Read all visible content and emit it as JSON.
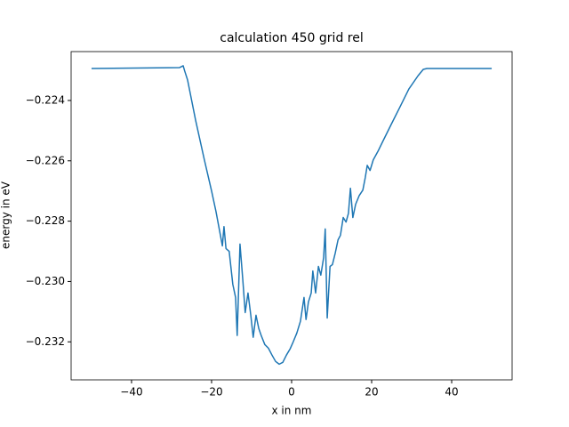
{
  "chart_data": {
    "type": "line",
    "title": "calculation 450 grid rel",
    "x_label": "x in nm",
    "y_label": "energy in eV",
    "x": [
      -50,
      -28,
      -27.1,
      -26.7,
      -26,
      -24,
      -21.8,
      -20,
      -18.9,
      -18,
      -17.3,
      -16.9,
      -16.4,
      -15.6,
      -14.7,
      -14,
      -13.6,
      -12.9,
      -12.2,
      -11.6,
      -10.9,
      -10.2,
      -9.6,
      -8.9,
      -8.2,
      -7.6,
      -6.7,
      -5.8,
      -4.9,
      -4,
      -3.1,
      -2.2,
      -1.3,
      -0.4,
      0.4,
      1.3,
      2.2,
      3.1,
      3.6,
      4.2,
      4.9,
      5.3,
      6,
      6.7,
      7.3,
      8,
      8.4,
      8.9,
      9.6,
      10.2,
      10.9,
      11.6,
      12.2,
      12.9,
      13.6,
      14.2,
      14.7,
      15.3,
      16,
      16.9,
      17.8,
      18.4,
      18.9,
      19.6,
      20.4,
      21.6,
      22.7,
      24.9,
      27.1,
      29.3,
      31.6,
      32.9,
      33.8,
      50
    ],
    "series": [
      {
        "color": "#1f77b4",
        "values": [
          -0.22294,
          -0.22291,
          -0.22285,
          -0.22303,
          -0.22332,
          -0.22465,
          -0.22597,
          -0.227,
          -0.22768,
          -0.22832,
          -0.22882,
          -0.22818,
          -0.22891,
          -0.229,
          -0.23009,
          -0.23053,
          -0.23179,
          -0.22876,
          -0.22994,
          -0.23103,
          -0.23038,
          -0.23112,
          -0.23185,
          -0.23112,
          -0.23156,
          -0.23179,
          -0.23209,
          -0.23221,
          -0.23244,
          -0.23265,
          -0.23274,
          -0.23268,
          -0.23244,
          -0.23224,
          -0.232,
          -0.23171,
          -0.23132,
          -0.23053,
          -0.23126,
          -0.23068,
          -0.23038,
          -0.22965,
          -0.23038,
          -0.2295,
          -0.22979,
          -0.22921,
          -0.22826,
          -0.23121,
          -0.2295,
          -0.22944,
          -0.22906,
          -0.22862,
          -0.22847,
          -0.22788,
          -0.22803,
          -0.22774,
          -0.22691,
          -0.22788,
          -0.22744,
          -0.22715,
          -0.22697,
          -0.22656,
          -0.22615,
          -0.22632,
          -0.22597,
          -0.22568,
          -0.22538,
          -0.22479,
          -0.22421,
          -0.22362,
          -0.22318,
          -0.22297,
          -0.22294,
          -0.22294
        ]
      }
    ],
    "xlim": [
      -55.1,
      55.1
    ],
    "xticks": [
      {
        "value": -40,
        "label": "−40"
      },
      {
        "value": -20,
        "label": "−20"
      },
      0,
      20,
      40
    ],
    "ylim": [
      -0.23326,
      -0.22238
    ],
    "yticks": [
      {
        "value": -0.224,
        "label": "−0.224"
      },
      {
        "value": -0.226,
        "label": "−0.226"
      },
      {
        "value": -0.228,
        "label": "−0.228"
      },
      {
        "value": -0.23,
        "label": "−0.230"
      },
      {
        "value": -0.232,
        "label": "−0.232"
      }
    ],
    "grid": false
  }
}
